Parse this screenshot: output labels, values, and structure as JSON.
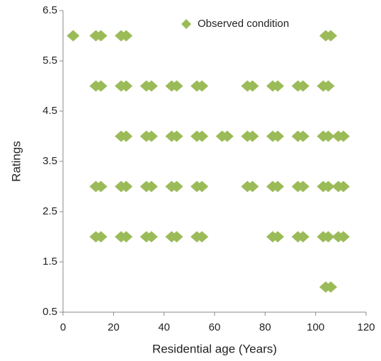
{
  "chart_data": {
    "type": "scatter",
    "x_label": "Residential age (Years)",
    "y_label": "Ratings",
    "series": [
      {
        "name": "Observed condition",
        "color": "#9bbb59",
        "x": [
          4,
          13,
          15,
          23,
          25,
          104,
          106,
          13,
          15,
          23,
          25,
          33,
          35,
          43,
          45,
          53,
          55,
          73,
          75,
          83,
          85,
          93,
          95,
          103,
          105,
          23,
          25,
          33,
          35,
          43,
          45,
          53,
          55,
          63,
          65,
          73,
          75,
          83,
          85,
          93,
          95,
          103,
          105,
          109,
          111,
          13,
          15,
          23,
          25,
          33,
          35,
          43,
          45,
          53,
          55,
          73,
          75,
          83,
          85,
          93,
          95,
          103,
          105,
          109,
          111,
          13,
          15,
          23,
          25,
          33,
          35,
          43,
          45,
          53,
          55,
          83,
          85,
          93,
          95,
          103,
          105,
          109,
          111,
          104,
          106
        ],
        "values": [
          6,
          6,
          6,
          6,
          6,
          6,
          6,
          5,
          5,
          5,
          5,
          5,
          5,
          5,
          5,
          5,
          5,
          5,
          5,
          5,
          5,
          5,
          5,
          5,
          5,
          4,
          4,
          4,
          4,
          4,
          4,
          4,
          4,
          4,
          4,
          4,
          4,
          4,
          4,
          4,
          4,
          4,
          4,
          4,
          4,
          3,
          3,
          3,
          3,
          3,
          3,
          3,
          3,
          3,
          3,
          3,
          3,
          3,
          3,
          3,
          3,
          3,
          3,
          3,
          3,
          2,
          2,
          2,
          2,
          2,
          2,
          2,
          2,
          2,
          2,
          2,
          2,
          2,
          2,
          2,
          2,
          2,
          2,
          1,
          1
        ]
      }
    ],
    "xlim": [
      0,
      120
    ],
    "xticks": [
      0,
      20,
      40,
      60,
      80,
      100,
      120
    ],
    "ylim": [
      0.5,
      6.5
    ],
    "yticks": [
      0.5,
      1.5,
      2.5,
      3.5,
      4.5,
      5.5,
      6.5
    ],
    "legend": "top"
  }
}
